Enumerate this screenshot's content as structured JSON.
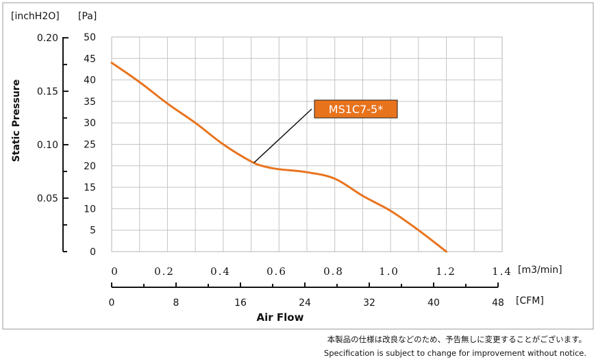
{
  "chart_data": {
    "type": "line",
    "title": "",
    "xlabel": "Air Flow",
    "ylabel": "Static Pressure",
    "x_unit_primary": "[m3/min]",
    "x_unit_secondary": "[CFM]",
    "y_unit_pa": "[Pa]",
    "y_unit_inch": "[inchH2O]",
    "x_ticks_m3min": [
      "0",
      "0.2",
      "0.4",
      "0.6",
      "0.8",
      "1.0",
      "1.2",
      "1.4"
    ],
    "x_ticks_cfm": [
      "0",
      "8",
      "16",
      "24",
      "32",
      "40",
      "48"
    ],
    "y_ticks_pa": [
      "0",
      "5",
      "10",
      "15",
      "20",
      "25",
      "30",
      "35",
      "40",
      "45",
      "50"
    ],
    "y_ticks_inch": [
      "0.05",
      "0.10",
      "0.15",
      "0.20"
    ],
    "xlim": [
      0,
      1.4
    ],
    "ylim": [
      0,
      50
    ],
    "grid": true,
    "series": [
      {
        "name": "MS1C7-5*",
        "color": "#E8731D",
        "x": [
          0,
          0.1,
          0.2,
          0.3,
          0.4,
          0.5,
          0.55,
          0.6,
          0.7,
          0.8,
          0.9,
          1.0,
          1.1,
          1.2
        ],
        "y": [
          44,
          39.5,
          34.5,
          30,
          25,
          21,
          19.8,
          19.2,
          18.5,
          17,
          13,
          9.5,
          5,
          0
        ]
      }
    ],
    "annotation": {
      "text": "MS1C7-5*",
      "fill": "#E8731D",
      "points_to": [
        0.51,
        20.7
      ]
    }
  },
  "notes": {
    "jp": "本製品の仕様は改良などのため、予告無しに変更することがございます。",
    "en": "Specification is subject to change for improvement without notice."
  }
}
